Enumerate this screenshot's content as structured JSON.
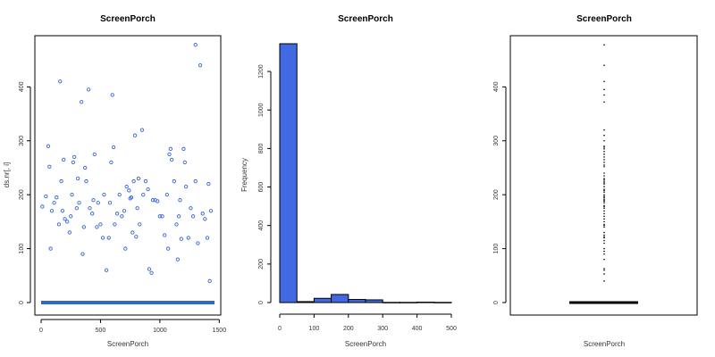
{
  "chart_data": [
    {
      "type": "scatter",
      "title": "ScreenPorch",
      "xlabel": "ScreenPorch",
      "ylabel": "ds.nr[, i]",
      "xlim": [
        0,
        1460
      ],
      "ylim": [
        0,
        480
      ],
      "xticks": [
        "0",
        "500",
        "1000",
        "1500"
      ],
      "yticks": [
        "0",
        "100",
        "200",
        "300",
        "400"
      ],
      "point_color": "#3366cc",
      "zero_run": {
        "x_from": 0,
        "x_to": 1460,
        "y": 0
      },
      "points": [
        [
          10,
          178
        ],
        [
          40,
          197
        ],
        [
          60,
          290
        ],
        [
          70,
          252
        ],
        [
          80,
          100
        ],
        [
          90,
          170
        ],
        [
          110,
          185
        ],
        [
          130,
          195
        ],
        [
          150,
          145
        ],
        [
          160,
          410
        ],
        [
          170,
          225
        ],
        [
          180,
          170
        ],
        [
          190,
          265
        ],
        [
          200,
          155
        ],
        [
          220,
          150
        ],
        [
          240,
          130
        ],
        [
          250,
          160
        ],
        [
          260,
          200
        ],
        [
          270,
          260
        ],
        [
          280,
          270
        ],
        [
          300,
          175
        ],
        [
          310,
          230
        ],
        [
          320,
          185
        ],
        [
          340,
          372
        ],
        [
          350,
          90
        ],
        [
          360,
          140
        ],
        [
          370,
          250
        ],
        [
          380,
          225
        ],
        [
          400,
          395
        ],
        [
          410,
          175
        ],
        [
          430,
          165
        ],
        [
          440,
          190
        ],
        [
          450,
          275
        ],
        [
          470,
          140
        ],
        [
          480,
          185
        ],
        [
          500,
          145
        ],
        [
          520,
          120
        ],
        [
          530,
          200
        ],
        [
          550,
          60
        ],
        [
          570,
          120
        ],
        [
          580,
          185
        ],
        [
          590,
          260
        ],
        [
          600,
          385
        ],
        [
          610,
          288
        ],
        [
          620,
          145
        ],
        [
          640,
          165
        ],
        [
          660,
          200
        ],
        [
          680,
          160
        ],
        [
          700,
          170
        ],
        [
          710,
          100
        ],
        [
          720,
          215
        ],
        [
          740,
          208
        ],
        [
          750,
          193
        ],
        [
          760,
          195
        ],
        [
          770,
          130
        ],
        [
          780,
          225
        ],
        [
          790,
          310
        ],
        [
          800,
          122
        ],
        [
          810,
          175
        ],
        [
          820,
          230
        ],
        [
          830,
          145
        ],
        [
          850,
          320
        ],
        [
          860,
          200
        ],
        [
          880,
          225
        ],
        [
          900,
          210
        ],
        [
          910,
          62
        ],
        [
          930,
          55
        ],
        [
          940,
          190
        ],
        [
          960,
          190
        ],
        [
          980,
          188
        ],
        [
          1000,
          160
        ],
        [
          1020,
          160
        ],
        [
          1040,
          125
        ],
        [
          1060,
          200
        ],
        [
          1070,
          100
        ],
        [
          1080,
          275
        ],
        [
          1090,
          285
        ],
        [
          1100,
          265
        ],
        [
          1120,
          225
        ],
        [
          1140,
          145
        ],
        [
          1150,
          80
        ],
        [
          1160,
          160
        ],
        [
          1170,
          190
        ],
        [
          1180,
          118
        ],
        [
          1200,
          285
        ],
        [
          1210,
          260
        ],
        [
          1220,
          215
        ],
        [
          1240,
          120
        ],
        [
          1260,
          175
        ],
        [
          1280,
          160
        ],
        [
          1300,
          478
        ],
        [
          1320,
          110
        ],
        [
          1340,
          440
        ],
        [
          1360,
          165
        ],
        [
          1380,
          155
        ],
        [
          1400,
          120
        ],
        [
          1410,
          220
        ],
        [
          1420,
          40
        ],
        [
          1430,
          170
        ],
        [
          1300,
          225
        ]
      ]
    },
    {
      "type": "bar",
      "title": "ScreenPorch",
      "xlabel": "ScreenPorch",
      "ylabel": "Frequency",
      "bar_color": "#4169e1",
      "xlim": [
        0,
        500
      ],
      "ylim": [
        0,
        1344
      ],
      "xticks": [
        "0",
        "100",
        "200",
        "300",
        "400",
        "500"
      ],
      "yticks": [
        "0",
        "200",
        "400",
        "600",
        "800",
        "1000",
        "1200"
      ],
      "bins": [
        {
          "from": 0,
          "to": 50,
          "count": 1344
        },
        {
          "from": 50,
          "to": 100,
          "count": 5
        },
        {
          "from": 100,
          "to": 150,
          "count": 22
        },
        {
          "from": 150,
          "to": 200,
          "count": 42
        },
        {
          "from": 200,
          "to": 250,
          "count": 16
        },
        {
          "from": 250,
          "to": 300,
          "count": 14
        },
        {
          "from": 300,
          "to": 350,
          "count": 1
        },
        {
          "from": 350,
          "to": 400,
          "count": 1
        },
        {
          "from": 400,
          "to": 450,
          "count": 2
        },
        {
          "from": 450,
          "to": 500,
          "count": 1
        }
      ]
    },
    {
      "type": "box",
      "title": "ScreenPorch",
      "xlabel": "ScreenPorch",
      "ylim": [
        0,
        480
      ],
      "yticks": [
        "0",
        "100",
        "200",
        "300",
        "400"
      ],
      "box": {
        "min": 0,
        "q1": 0,
        "median": 0,
        "q3": 0,
        "max": 0
      },
      "outliers": [
        40,
        53,
        60,
        63,
        80,
        90,
        95,
        100,
        110,
        115,
        120,
        122,
        125,
        130,
        140,
        143,
        145,
        150,
        155,
        160,
        165,
        170,
        175,
        178,
        180,
        185,
        188,
        190,
        192,
        195,
        197,
        200,
        205,
        208,
        210,
        215,
        220,
        222,
        225,
        228,
        230,
        235,
        240,
        252,
        255,
        260,
        265,
        270,
        275,
        280,
        285,
        288,
        290,
        300,
        310,
        320,
        372,
        385,
        395,
        410,
        440,
        478
      ]
    }
  ]
}
